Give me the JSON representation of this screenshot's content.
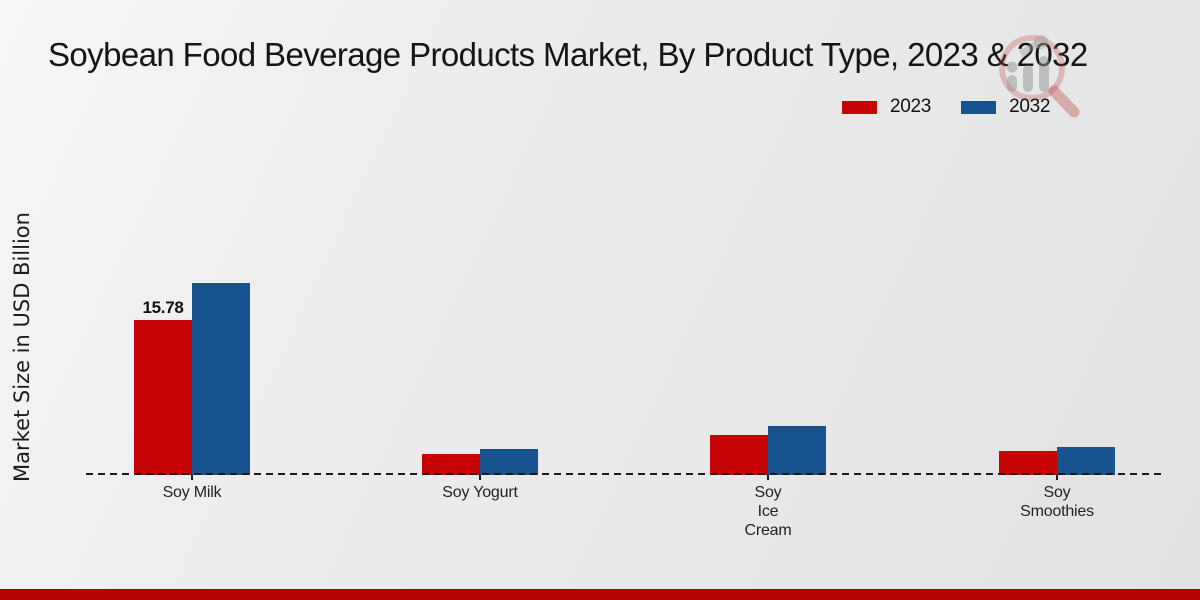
{
  "title": "Soybean Food Beverage Products Market, By Product Type, 2023 & 2032",
  "ylabel": "Market Size in USD Billion",
  "watermark_icon": "market-research-magnifier-bars-logo",
  "colors": {
    "series_2023": "#c60405",
    "series_2032": "#17538f",
    "bottom_strip": "#b20303",
    "axis_line": "#1a1a1a",
    "background": "#ebebeb"
  },
  "chart_data": {
    "type": "bar",
    "title": "Soybean Food Beverage Products Market, By Product Type, 2023 & 2032",
    "xlabel": "",
    "ylabel": "Market Size in USD Billion",
    "categories": [
      "Soy Milk",
      "Soy Yogurt",
      "Soy Ice Cream",
      "Soy Smoothies"
    ],
    "category_label_lines": [
      [
        "Soy Milk"
      ],
      [
        "Soy Yogurt"
      ],
      [
        "Soy",
        "Ice",
        "Cream"
      ],
      [
        "Soy",
        "Smoothies"
      ]
    ],
    "series": [
      {
        "name": "2023",
        "color": "#c60405",
        "values": [
          15.78,
          2.15,
          4.07,
          2.45
        ],
        "value_labels": [
          "15.78",
          "",
          "",
          ""
        ]
      },
      {
        "name": "2032",
        "color": "#17538f",
        "values": [
          19.55,
          2.6,
          5.0,
          2.87
        ],
        "value_labels": [
          "",
          "",
          "",
          ""
        ]
      }
    ],
    "ylim": [
      0,
      33
    ],
    "grid": false,
    "y_axis_ticks_visible": false,
    "baseline_style": "dashed",
    "legend_position": "upper-right"
  }
}
